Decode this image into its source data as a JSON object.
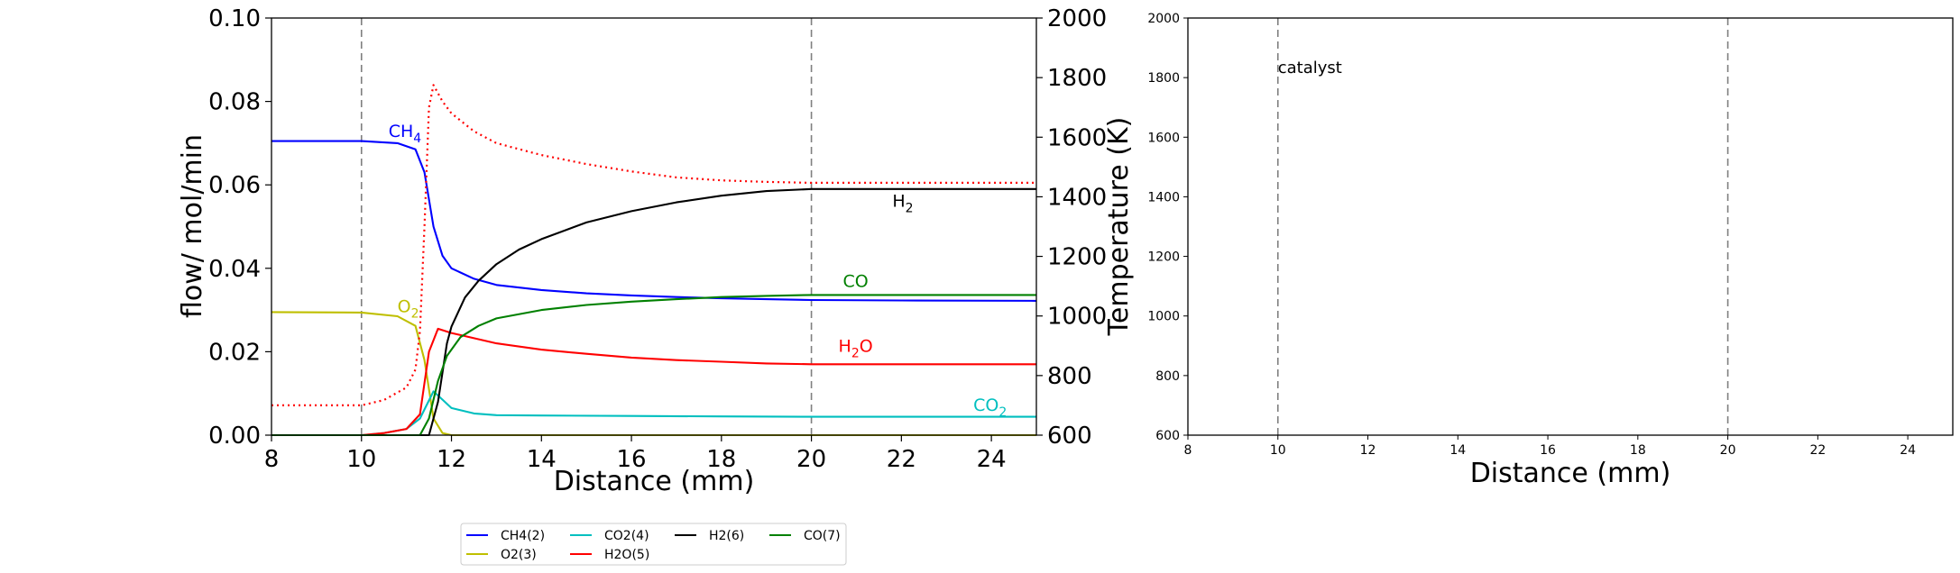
{
  "chart_data": [
    {
      "type": "line",
      "xlabel": "Distance (mm)",
      "ylabel": "flow/ mol/min",
      "y2label": "Temperature (K)",
      "xlim": [
        8,
        25
      ],
      "ylim": [
        0,
        0.1
      ],
      "y2lim": [
        600,
        2000
      ],
      "x_ticks": [
        "8",
        "10",
        "12",
        "14",
        "16",
        "18",
        "20",
        "22",
        "24"
      ],
      "y_ticks": [
        "0.00",
        "0.02",
        "0.04",
        "0.06",
        "0.08",
        "0.10"
      ],
      "y2_ticks": [
        "600",
        "800",
        "1000",
        "1200",
        "1400",
        "1600",
        "1800",
        "2000"
      ],
      "vlines": [
        10,
        20
      ],
      "grid": false,
      "series": [
        {
          "name": "CH4(2)",
          "color": "#0000ff",
          "x": [
            8,
            10,
            10.8,
            11.2,
            11.4,
            11.6,
            11.8,
            12,
            12.5,
            13,
            14,
            15,
            16,
            17,
            18,
            19,
            20,
            22,
            25
          ],
          "y": [
            0.0705,
            0.0705,
            0.07,
            0.0685,
            0.063,
            0.05,
            0.043,
            0.04,
            0.0375,
            0.036,
            0.0348,
            0.034,
            0.0335,
            0.0331,
            0.0328,
            0.0326,
            0.0324,
            0.0323,
            0.0322
          ]
        },
        {
          "name": "O2(3)",
          "color": "#bfbf00",
          "x": [
            8,
            10,
            10.8,
            11.2,
            11.4,
            11.6,
            11.8,
            12,
            25
          ],
          "y": [
            0.0295,
            0.0294,
            0.0285,
            0.0262,
            0.018,
            0.004,
            0.0005,
            0.0,
            0.0
          ]
        },
        {
          "name": "CO2(4)",
          "color": "#00bfbf",
          "x": [
            8,
            10,
            10.5,
            11,
            11.3,
            11.6,
            11.8,
            12,
            12.5,
            13,
            14,
            16,
            18,
            20,
            25
          ],
          "y": [
            0.0,
            0.0,
            0.0005,
            0.0015,
            0.004,
            0.0105,
            0.0085,
            0.0065,
            0.0052,
            0.0048,
            0.0047,
            0.0046,
            0.0045,
            0.0044,
            0.0044
          ]
        },
        {
          "name": "H2O(5)",
          "color": "#ff0000",
          "x": [
            8,
            10,
            10.5,
            11,
            11.3,
            11.5,
            11.7,
            12,
            13,
            14,
            15,
            16,
            17,
            18,
            19,
            20,
            22,
            25
          ],
          "y": [
            0.0,
            0.0,
            0.0005,
            0.0015,
            0.005,
            0.02,
            0.0255,
            0.0245,
            0.022,
            0.0205,
            0.0195,
            0.0186,
            0.018,
            0.0176,
            0.0172,
            0.017,
            0.017,
            0.017
          ]
        },
        {
          "name": "H2(6)",
          "color": "#000000",
          "x": [
            8,
            11.5,
            11.7,
            11.9,
            12,
            12.3,
            12.6,
            13,
            13.5,
            14,
            15,
            16,
            17,
            18,
            19,
            20,
            22,
            25
          ],
          "y": [
            0.0,
            0.0,
            0.008,
            0.022,
            0.026,
            0.033,
            0.037,
            0.041,
            0.0445,
            0.047,
            0.051,
            0.0537,
            0.0558,
            0.0574,
            0.0585,
            0.059,
            0.059,
            0.059
          ]
        },
        {
          "name": "CO(7)",
          "color": "#008000",
          "x": [
            8,
            11.3,
            11.5,
            11.7,
            11.9,
            12.2,
            12.6,
            13,
            14,
            15,
            16,
            17,
            18,
            19,
            20,
            22,
            25
          ],
          "y": [
            0.0,
            0.0,
            0.004,
            0.013,
            0.019,
            0.0235,
            0.0262,
            0.028,
            0.03,
            0.0312,
            0.032,
            0.0326,
            0.0331,
            0.0334,
            0.0336,
            0.0336,
            0.0336
          ]
        },
        {
          "name": "",
          "axis": "y2",
          "style": "dotted",
          "color": "#ff0000",
          "x": [
            8,
            10,
            10.5,
            11,
            11.2,
            11.3,
            11.4,
            11.5,
            11.6,
            11.8,
            12,
            12.5,
            13,
            14,
            15,
            16,
            17,
            18,
            19,
            20,
            22,
            25
          ],
          "y": [
            700,
            700,
            718,
            760,
            820,
            950,
            1300,
            1700,
            1775,
            1720,
            1680,
            1620,
            1580,
            1540,
            1510,
            1485,
            1465,
            1455,
            1450,
            1447,
            1447,
            1447
          ]
        }
      ],
      "annotations": [
        {
          "text": "CH",
          "sub": "4",
          "x": 10.6,
          "y": 0.0715,
          "color": "#0000ff"
        },
        {
          "text": "O",
          "sub": "2",
          "x": 10.8,
          "y": 0.0295,
          "color": "#bfbf00"
        },
        {
          "text": "H",
          "sub": "2",
          "x": 21.8,
          "y": 0.0548,
          "color": "#000000"
        },
        {
          "text": "CO",
          "sub": "",
          "x": 20.7,
          "y": 0.0355,
          "color": "#008000"
        },
        {
          "text": "H",
          "sub": "2",
          "suffix": "O",
          "x": 20.6,
          "y": 0.02,
          "color": "#ff0000"
        },
        {
          "text": "CO",
          "sub": "2",
          "x": 23.6,
          "y": 0.0058,
          "color": "#00bfbf"
        }
      ]
    },
    {
      "type": "line",
      "xlabel": "Distance (mm)",
      "xlim": [
        8,
        25
      ],
      "ylim": [
        600,
        2000
      ],
      "x_ticks": [
        "8",
        "10",
        "12",
        "14",
        "16",
        "18",
        "20",
        "22",
        "24"
      ],
      "y_ticks": [
        "600",
        "800",
        "1000",
        "1200",
        "1400",
        "1600",
        "1800",
        "2000"
      ],
      "vlines": [
        10,
        20
      ],
      "annotations": [
        {
          "text": "catalyst",
          "x": 10.0,
          "y": 1815
        }
      ],
      "series": []
    }
  ],
  "legend": {
    "placement": "bottom-center",
    "entries": [
      {
        "label": "CH4(2)",
        "color": "#0000ff"
      },
      {
        "label": "CO2(4)",
        "color": "#00bfbf"
      },
      {
        "label": "H2(6)",
        "color": "#000000"
      },
      {
        "label": "CO(7)",
        "color": "#008000"
      },
      {
        "label": "O2(3)",
        "color": "#bfbf00"
      },
      {
        "label": "H2O(5)",
        "color": "#ff0000"
      }
    ]
  }
}
